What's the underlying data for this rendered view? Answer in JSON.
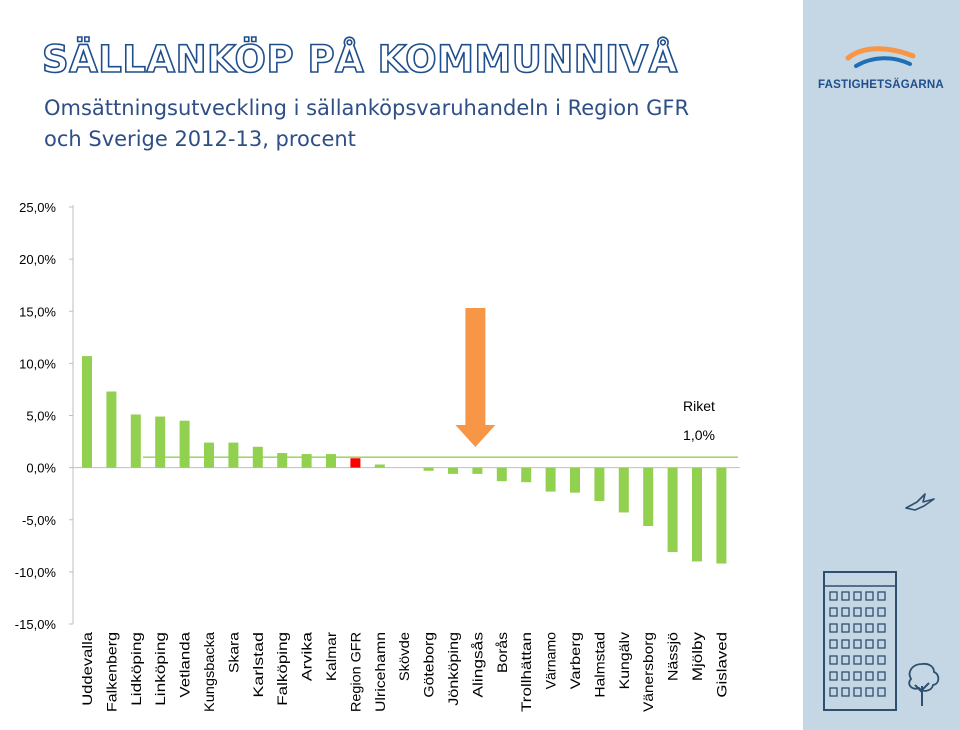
{
  "header": {
    "title": "SÄLLANKÖP PÅ KOMMUNNIVÅ",
    "subtitle_line1": "Omsättningsutveckling i sällanköpsvaruhandeln i Region GFR",
    "subtitle_line2": "och Sverige 2012-13, procent"
  },
  "logo": {
    "text": "FASTIGHETSÄGARNA"
  },
  "colors": {
    "bar": "#92d050",
    "highlight_bar": "#ff0000",
    "arrow": "#f79646",
    "reference_line": "#92d050",
    "title_outline": "#1f4e8c",
    "sidebar": "#c5d7e4"
  },
  "chart_data": {
    "type": "bar",
    "title": "",
    "xlabel": "",
    "ylabel": "",
    "ylim": [
      -15,
      25
    ],
    "y_ticks": [
      25,
      20,
      15,
      10,
      5,
      0,
      -5,
      -10,
      -15
    ],
    "y_tick_labels": [
      "25,0%",
      "20,0%",
      "15,0%",
      "10,0%",
      "5,0%",
      "0,0%",
      "-5,0%",
      "-10,0%",
      "-15,0%"
    ],
    "categories": [
      "Uddevalla",
      "Falkenberg",
      "Lidköping",
      "Linköping",
      "Vetlanda",
      "Kungsbacka",
      "Skara",
      "Karlstad",
      "Falköping",
      "Arvika",
      "Kalmar",
      "Region GFR",
      "Ulricehamn",
      "Skövde",
      "Göteborg",
      "Jönköping",
      "Alingsås",
      "Borås",
      "Trollhättan",
      "Värnamo",
      "Varberg",
      "Halmstad",
      "Kungälv",
      "Vänersborg",
      "Nässjö",
      "Mjölby",
      "Gislaved"
    ],
    "values": [
      10.7,
      7.3,
      5.1,
      4.9,
      4.5,
      2.4,
      2.4,
      2.0,
      1.4,
      1.3,
      1.3,
      0.9,
      0.3,
      0.0,
      -0.3,
      -0.6,
      -0.6,
      -1.3,
      -1.4,
      -2.3,
      -2.4,
      -3.2,
      -4.3,
      -5.6,
      -8.1,
      -9.0,
      -9.2
    ],
    "highlight_category": "Region GFR",
    "arrow_category": "Alingsås",
    "reference_line": {
      "value": 1.0,
      "label": "Riket",
      "value_label": "1,0%"
    },
    "grid": false
  }
}
